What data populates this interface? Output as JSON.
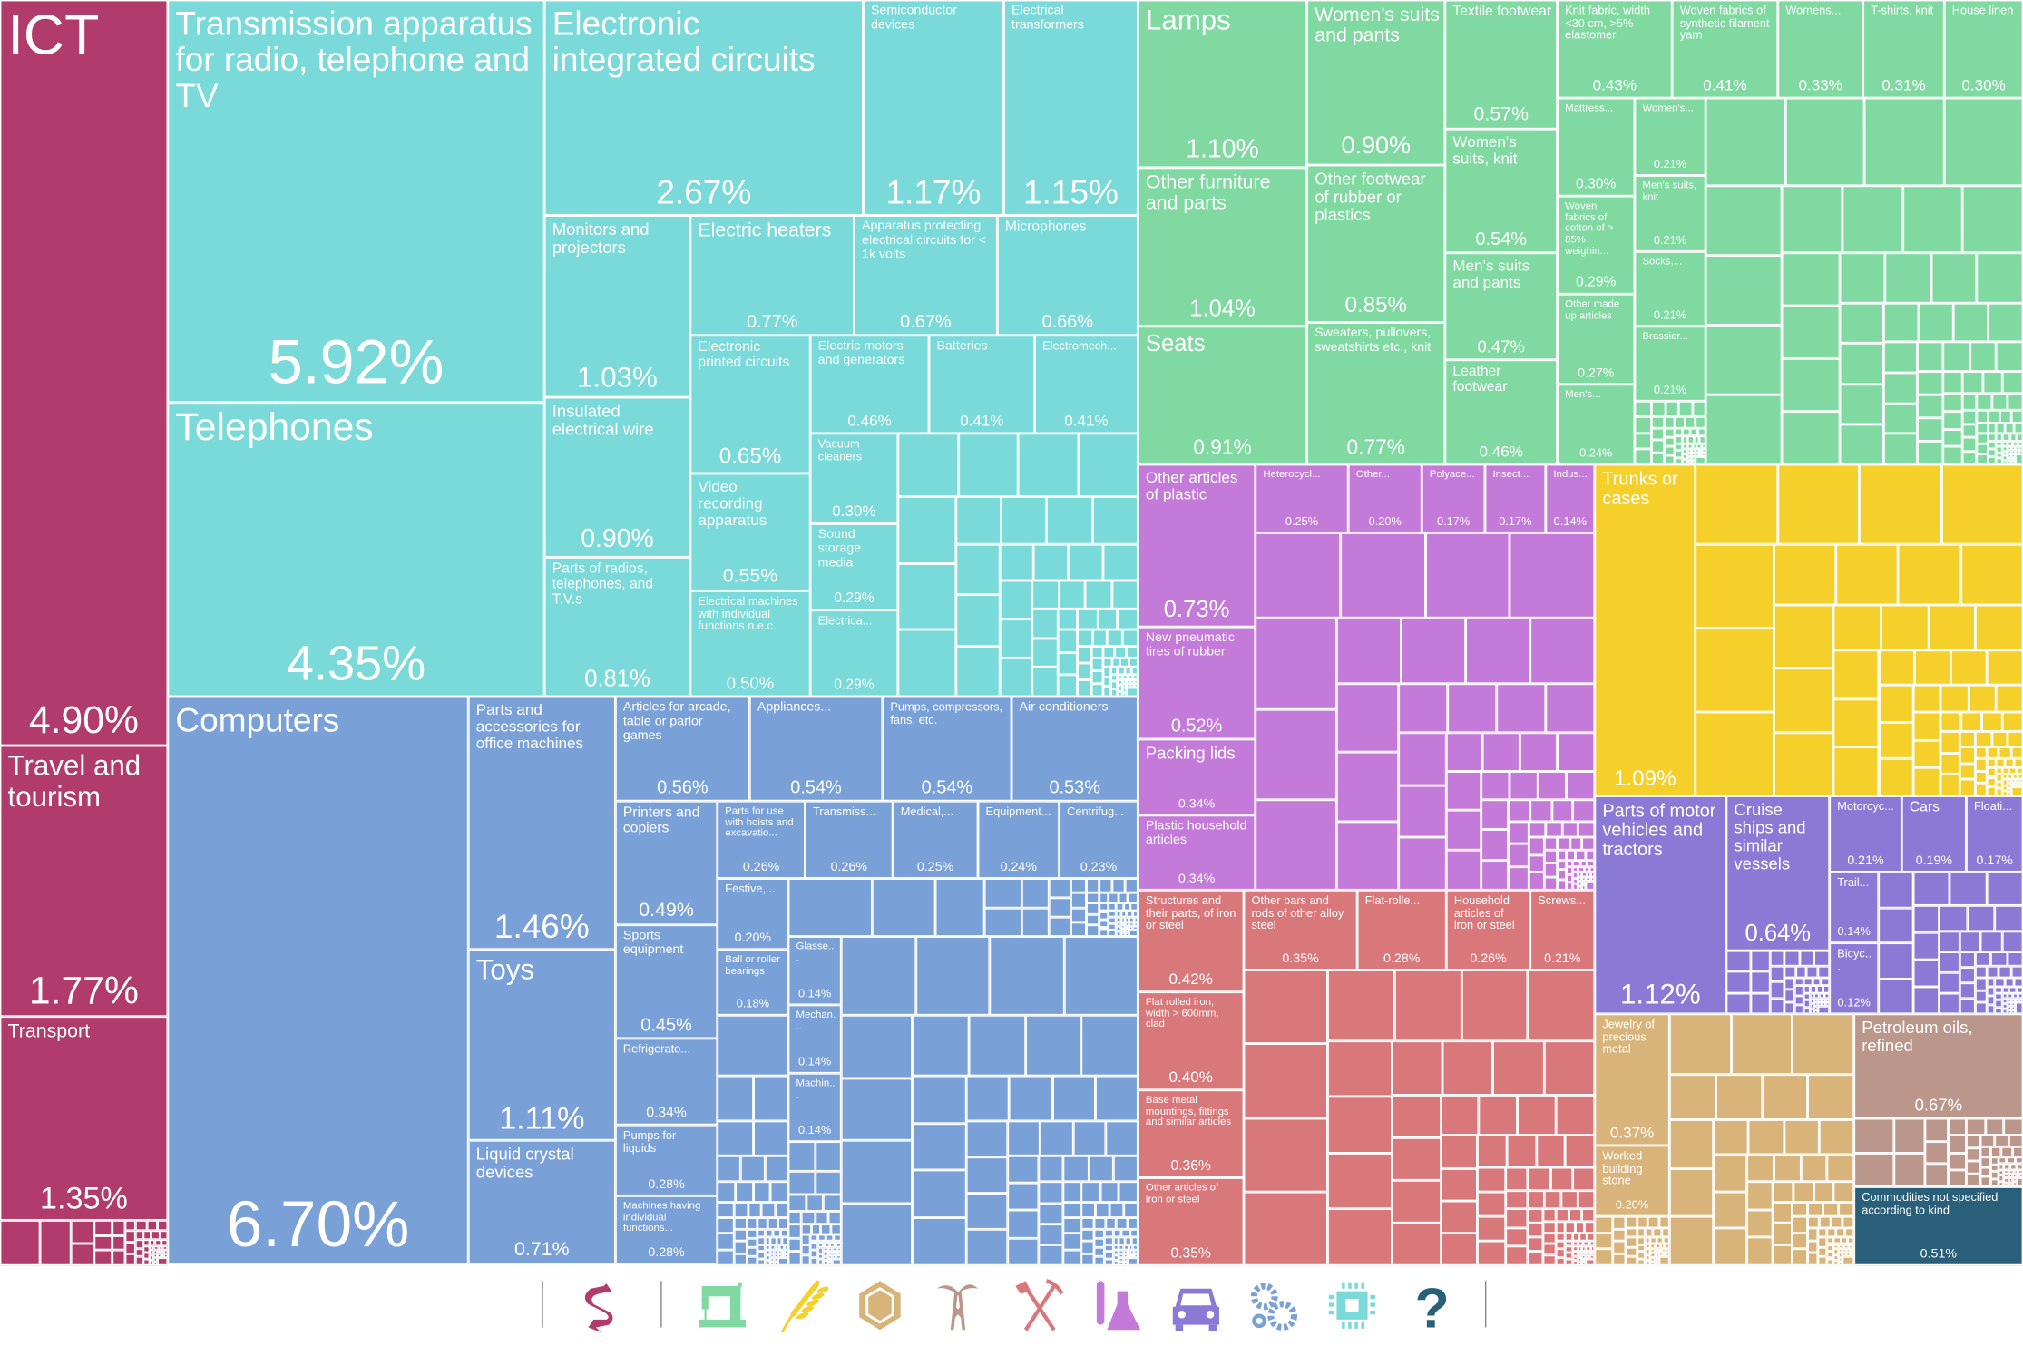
{
  "chart_data": {
    "type": "treemap",
    "unit": "% of exports",
    "sectors": {
      "services": {
        "color": "#b13b6b",
        "icon": "handshake-icon"
      },
      "electronics": {
        "color": "#7ad9d9",
        "icon": "microchip-icon"
      },
      "machines": {
        "color": "#7aa0d8",
        "icon": "gears-icon"
      },
      "textiles": {
        "color": "#7fd9a0",
        "icon": "sewing-machine-icon"
      },
      "chemicals": {
        "color": "#c47ad8",
        "icon": "flask-icon"
      },
      "metals": {
        "color": "#d9787a",
        "icon": "pickaxe-shovel-icon"
      },
      "vegetable": {
        "color": "#f5cf2a",
        "icon": "wheat-icon"
      },
      "vehicles": {
        "color": "#8a7ad6",
        "icon": "car-icon"
      },
      "stone": {
        "color": "#d8b47a",
        "icon": "gem-icon"
      },
      "minerals": {
        "color": "#bb968a",
        "icon": "oil-derrick-icon"
      },
      "other": {
        "color": "#2a5f7a",
        "icon": "question-mark-icon"
      }
    },
    "tiles": [
      {
        "label": "ICT",
        "share": "4.90%",
        "sector": "services"
      },
      {
        "label": "Travel and tourism",
        "share": "1.77%",
        "sector": "services"
      },
      {
        "label": "Transport",
        "share": "1.35%",
        "sector": "services"
      },
      {
        "label": "Transmission apparatus for radio, telephone and TV",
        "share": "5.92%",
        "sector": "electronics"
      },
      {
        "label": "Telephones",
        "share": "4.35%",
        "sector": "electronics"
      },
      {
        "label": "Electronic integrated circuits",
        "share": "2.67%",
        "sector": "electronics"
      },
      {
        "label": "Semiconductor devices",
        "share": "1.17%",
        "sector": "electronics"
      },
      {
        "label": "Electrical transformers",
        "share": "1.15%",
        "sector": "electronics"
      },
      {
        "label": "Monitors and projectors",
        "share": "1.03%",
        "sector": "electronics"
      },
      {
        "label": "Insulated electrical wire",
        "share": "0.90%",
        "sector": "electronics"
      },
      {
        "label": "Parts of radios, telephones, and T.V.s",
        "share": "0.81%",
        "sector": "electronics"
      },
      {
        "label": "Electric heaters",
        "share": "0.77%",
        "sector": "electronics"
      },
      {
        "label": "Apparatus protecting electrical circuits for < 1k volts",
        "share": "0.67%",
        "sector": "electronics"
      },
      {
        "label": "Microphones",
        "share": "0.66%",
        "sector": "electronics"
      },
      {
        "label": "Electronic printed circuits",
        "share": "0.65%",
        "sector": "electronics"
      },
      {
        "label": "Video recording apparatus",
        "share": "0.55%",
        "sector": "electronics"
      },
      {
        "label": "Electrical machines with individual functions n.e.c.",
        "share": "0.50%",
        "sector": "electronics"
      },
      {
        "label": "Electric motors and generators",
        "share": "0.46%",
        "sector": "electronics"
      },
      {
        "label": "Batteries",
        "share": "0.41%",
        "sector": "electronics"
      },
      {
        "label": "Electromech...",
        "share": "0.41%",
        "sector": "electronics"
      },
      {
        "label": "Vacuum cleaners",
        "share": "0.30%",
        "sector": "electronics"
      },
      {
        "label": "Sound storage media",
        "share": "0.29%",
        "sector": "electronics"
      },
      {
        "label": "Electrica...",
        "share": "0.29%",
        "sector": "electronics"
      },
      {
        "label": "Computers",
        "share": "6.70%",
        "sector": "machines"
      },
      {
        "label": "Parts and accessories for office machines",
        "share": "1.46%",
        "sector": "machines"
      },
      {
        "label": "Toys",
        "share": "1.11%",
        "sector": "machines"
      },
      {
        "label": "Liquid crystal devices",
        "share": "0.71%",
        "sector": "machines"
      },
      {
        "label": "Articles for arcade, table or parlor games",
        "share": "0.56%",
        "sector": "machines"
      },
      {
        "label": "Appliances...",
        "share": "0.54%",
        "sector": "machines"
      },
      {
        "label": "Pumps, compressors, fans, etc.",
        "share": "0.54%",
        "sector": "machines"
      },
      {
        "label": "Air conditioners",
        "share": "0.53%",
        "sector": "machines"
      },
      {
        "label": "Printers and copiers",
        "share": "0.49%",
        "sector": "machines"
      },
      {
        "label": "Sports equipment",
        "share": "0.45%",
        "sector": "machines"
      },
      {
        "label": "Refrigerato...",
        "share": "0.34%",
        "sector": "machines"
      },
      {
        "label": "Pumps for liquids",
        "share": "0.28%",
        "sector": "machines"
      },
      {
        "label": "Machines having individual functions...",
        "share": "0.28%",
        "sector": "machines"
      },
      {
        "label": "Parts for use with hoists and excavatio...",
        "share": "0.26%",
        "sector": "machines"
      },
      {
        "label": "Transmiss...",
        "share": "0.26%",
        "sector": "machines"
      },
      {
        "label": "Medical,...",
        "share": "0.25%",
        "sector": "machines"
      },
      {
        "label": "Equipment...",
        "share": "0.24%",
        "sector": "machines"
      },
      {
        "label": "Centrifug...",
        "share": "0.23%",
        "sector": "machines"
      },
      {
        "label": "Festive,...",
        "share": "0.20%",
        "sector": "machines"
      },
      {
        "label": "Ball or roller bearings",
        "share": "0.18%",
        "sector": "machines"
      },
      {
        "label": "Glasse...",
        "share": "0.14%",
        "sector": "machines"
      },
      {
        "label": "Mechan...",
        "share": "0.14%",
        "sector": "machines"
      },
      {
        "label": "Machin...",
        "share": "0.14%",
        "sector": "machines"
      },
      {
        "label": "Lamps",
        "share": "1.10%",
        "sector": "textiles"
      },
      {
        "label": "Other furniture and parts",
        "share": "1.04%",
        "sector": "textiles"
      },
      {
        "label": "Seats",
        "share": "0.91%",
        "sector": "textiles"
      },
      {
        "label": "Women's suits and pants",
        "share": "0.90%",
        "sector": "textiles"
      },
      {
        "label": "Other footwear of rubber or plastics",
        "share": "0.85%",
        "sector": "textiles"
      },
      {
        "label": "Sweaters, pullovers, sweatshirts etc., knit",
        "share": "0.77%",
        "sector": "textiles"
      },
      {
        "label": "Textile footwear",
        "share": "0.57%",
        "sector": "textiles"
      },
      {
        "label": "Women's suits, knit",
        "share": "0.54%",
        "sector": "textiles"
      },
      {
        "label": "Men's suits and pants",
        "share": "0.47%",
        "sector": "textiles"
      },
      {
        "label": "Leather footwear",
        "share": "0.46%",
        "sector": "textiles"
      },
      {
        "label": "Knit fabric, width <30 cm, >5% elastomer",
        "share": "0.43%",
        "sector": "textiles"
      },
      {
        "label": "Woven fabrics of synthetic filament yarn",
        "share": "0.41%",
        "sector": "textiles"
      },
      {
        "label": "Womens...",
        "share": "0.33%",
        "sector": "textiles"
      },
      {
        "label": "T-shirts, knit",
        "share": "0.31%",
        "sector": "textiles"
      },
      {
        "label": "House linen",
        "share": "0.30%",
        "sector": "textiles"
      },
      {
        "label": "Mattress...",
        "share": "0.30%",
        "sector": "textiles"
      },
      {
        "label": "Woven fabrics of cotton of > 85% weighin...",
        "share": "0.29%",
        "sector": "textiles"
      },
      {
        "label": "Other made up articles",
        "share": "0.27%",
        "sector": "textiles"
      },
      {
        "label": "Men's...",
        "share": "0.24%",
        "sector": "textiles"
      },
      {
        "label": "Women's...",
        "share": "0.21%",
        "sector": "textiles"
      },
      {
        "label": "Men's suits, knit",
        "share": "0.21%",
        "sector": "textiles"
      },
      {
        "label": "Socks,...",
        "share": "0.21%",
        "sector": "textiles"
      },
      {
        "label": "Brassier...",
        "share": "0.21%",
        "sector": "textiles"
      },
      {
        "label": "Other articles of plastic",
        "share": "0.73%",
        "sector": "chemicals"
      },
      {
        "label": "New pneumatic tires of rubber",
        "share": "0.52%",
        "sector": "chemicals"
      },
      {
        "label": "Packing lids",
        "share": "0.34%",
        "sector": "chemicals"
      },
      {
        "label": "Plastic household articles",
        "share": "0.34%",
        "sector": "chemicals"
      },
      {
        "label": "Heterocycl...",
        "share": "0.25%",
        "sector": "chemicals"
      },
      {
        "label": "Other...",
        "share": "0.20%",
        "sector": "chemicals"
      },
      {
        "label": "Polyace...",
        "share": "0.17%",
        "sector": "chemicals"
      },
      {
        "label": "Insect...",
        "share": "0.17%",
        "sector": "chemicals"
      },
      {
        "label": "Indus...",
        "share": "0.14%",
        "sector": "chemicals"
      },
      {
        "label": "Structures and their parts, of iron or steel",
        "share": "0.42%",
        "sector": "metals"
      },
      {
        "label": "Flat rolled iron, width > 600mm, clad",
        "share": "0.40%",
        "sector": "metals"
      },
      {
        "label": "Base metal mountings, fittings and similar articles",
        "share": "0.36%",
        "sector": "metals"
      },
      {
        "label": "Other articles of iron or steel",
        "share": "0.35%",
        "sector": "metals"
      },
      {
        "label": "Other bars and rods of other alloy steel",
        "share": "0.35%",
        "sector": "metals"
      },
      {
        "label": "Flat-rolle...",
        "share": "0.28%",
        "sector": "metals"
      },
      {
        "label": "Household articles of iron or steel",
        "share": "0.26%",
        "sector": "metals"
      },
      {
        "label": "Screws...",
        "share": "0.21%",
        "sector": "metals"
      },
      {
        "label": "Trunks or cases",
        "share": "1.09%",
        "sector": "vegetable"
      },
      {
        "label": "Parts of motor vehicles and tractors",
        "share": "1.12%",
        "sector": "vehicles"
      },
      {
        "label": "Cruise ships and similar vessels",
        "share": "0.64%",
        "sector": "vehicles"
      },
      {
        "label": "Motorcyc...",
        "share": "0.21%",
        "sector": "vehicles"
      },
      {
        "label": "Cars",
        "share": "0.19%",
        "sector": "vehicles"
      },
      {
        "label": "Floati...",
        "share": "0.17%",
        "sector": "vehicles"
      },
      {
        "label": "Trail...",
        "share": "0.14%",
        "sector": "vehicles"
      },
      {
        "label": "Bicyc...",
        "share": "0.12%",
        "sector": "vehicles"
      },
      {
        "label": "Jewelry of precious metal",
        "share": "0.37%",
        "sector": "stone"
      },
      {
        "label": "Worked building stone",
        "share": "0.20%",
        "sector": "stone"
      },
      {
        "label": "Petroleum oils, refined",
        "share": "0.67%",
        "sector": "minerals"
      },
      {
        "label": "Commodities not specified according to kind",
        "share": "0.51%",
        "sector": "other"
      }
    ],
    "legend_order": [
      "services",
      "textiles",
      "vegetable",
      "stone",
      "minerals",
      "metals",
      "chemicals",
      "vehicles",
      "machines",
      "electronics",
      "other"
    ]
  }
}
